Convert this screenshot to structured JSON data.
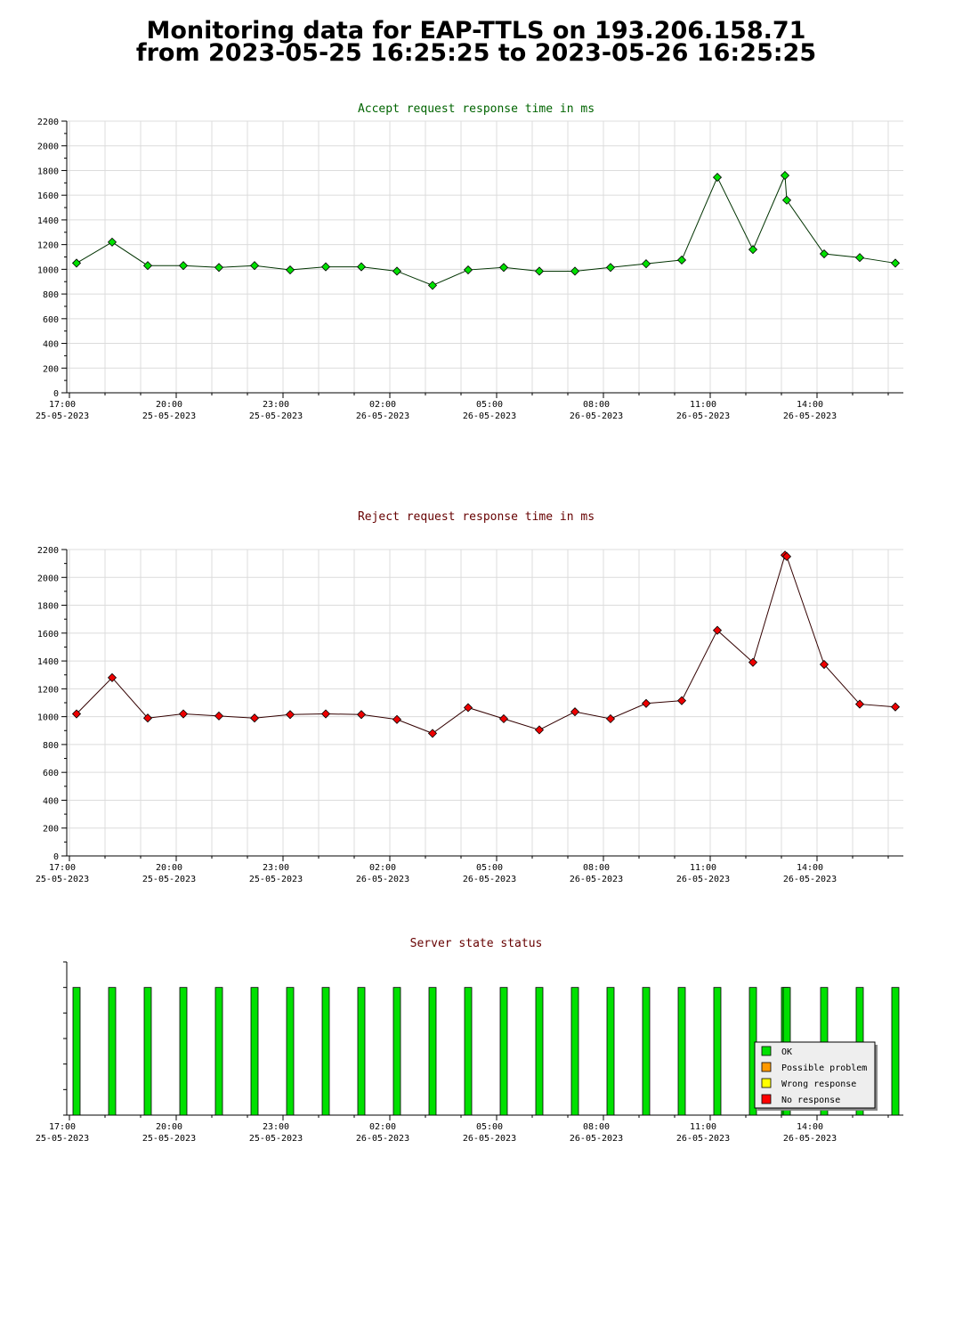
{
  "page": {
    "title_line1": "Monitoring data for EAP-TTLS on 193.206.158.71",
    "title_line2": "from 2023-05-25 16:25:25 to 2023-05-26 16:25:25"
  },
  "x_ticks": [
    {
      "time": "17:00",
      "date": "25-05-2023",
      "hours": 0
    },
    {
      "time": "20:00",
      "date": "25-05-2023",
      "hours": 3
    },
    {
      "time": "23:00",
      "date": "25-05-2023",
      "hours": 6
    },
    {
      "time": "02:00",
      "date": "26-05-2023",
      "hours": 9
    },
    {
      "time": "05:00",
      "date": "26-05-2023",
      "hours": 12
    },
    {
      "time": "08:00",
      "date": "26-05-2023",
      "hours": 15
    },
    {
      "time": "11:00",
      "date": "26-05-2023",
      "hours": 18
    },
    {
      "time": "14:00",
      "date": "26-05-2023",
      "hours": 21
    }
  ],
  "chart_data": [
    {
      "type": "line",
      "title": "Accept request response time in ms",
      "title_color": "#006400",
      "line_color": "#003300",
      "marker_color": "#00e000",
      "xlabel": "",
      "ylabel": "",
      "ylim": [
        0,
        2200
      ],
      "y_ticks": [
        0,
        200,
        400,
        600,
        800,
        1000,
        1200,
        1400,
        1600,
        1800,
        2000,
        2200
      ],
      "x_hours": [
        0.2,
        1.2,
        2.2,
        3.2,
        4.2,
        5.2,
        6.2,
        7.2,
        8.2,
        9.2,
        10.2,
        11.2,
        12.2,
        13.2,
        14.2,
        15.2,
        16.2,
        17.2,
        18.2,
        19.2,
        20.1,
        20.15,
        21.2,
        22.2,
        23.2
      ],
      "values": [
        1050,
        1220,
        1030,
        1030,
        1015,
        1030,
        995,
        1020,
        1020,
        985,
        870,
        995,
        1015,
        985,
        985,
        1015,
        1045,
        1075,
        1745,
        1160,
        1760,
        1560,
        1125,
        1095,
        1050
      ],
      "grid": true
    },
    {
      "type": "line",
      "title": "Reject request response time in ms",
      "title_color": "#660000",
      "line_color": "#330000",
      "marker_color": "#ee0000",
      "xlabel": "",
      "ylabel": "",
      "ylim": [
        0,
        2200
      ],
      "y_ticks": [
        0,
        200,
        400,
        600,
        800,
        1000,
        1200,
        1400,
        1600,
        1800,
        2000,
        2200
      ],
      "x_hours": [
        0.2,
        1.2,
        2.2,
        3.2,
        4.2,
        5.2,
        6.2,
        7.2,
        8.2,
        9.2,
        10.2,
        11.2,
        12.2,
        13.2,
        14.2,
        15.2,
        16.2,
        17.2,
        18.2,
        19.2,
        20.1,
        20.15,
        21.2,
        22.2,
        23.2
      ],
      "values": [
        1020,
        1280,
        990,
        1020,
        1005,
        990,
        1015,
        1020,
        1015,
        980,
        880,
        1065,
        985,
        905,
        1035,
        985,
        1095,
        1115,
        1620,
        1390,
        2160,
        2150,
        1375,
        1090,
        1070
      ],
      "grid": true
    },
    {
      "type": "bar",
      "title": "Server state status",
      "title_color": "#660000",
      "x_hours": [
        0.2,
        1.2,
        2.2,
        3.2,
        4.2,
        5.2,
        6.2,
        7.2,
        8.2,
        9.2,
        10.2,
        11.2,
        12.2,
        13.2,
        14.2,
        15.2,
        16.2,
        17.2,
        18.2,
        19.2,
        20.1,
        20.15,
        21.2,
        22.2,
        23.2
      ],
      "status": [
        "OK",
        "OK",
        "OK",
        "OK",
        "OK",
        "OK",
        "OK",
        "OK",
        "OK",
        "OK",
        "OK",
        "OK",
        "OK",
        "OK",
        "OK",
        "OK",
        "OK",
        "OK",
        "OK",
        "OK",
        "OK",
        "OK",
        "OK",
        "OK",
        "OK"
      ],
      "legend": [
        {
          "label": "OK",
          "color": "#00e000"
        },
        {
          "label": "Possible problem",
          "color": "#ff9900"
        },
        {
          "label": "Wrong response",
          "color": "#ffff00"
        },
        {
          "label": "No response",
          "color": "#ff0000"
        }
      ],
      "legend_position": "bottom-right"
    }
  ]
}
